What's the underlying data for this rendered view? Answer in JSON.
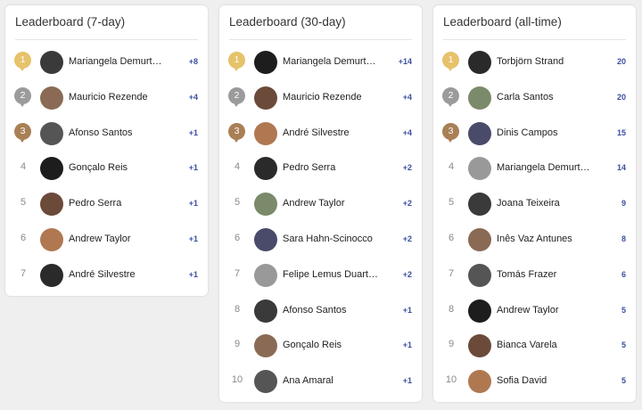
{
  "panels": [
    {
      "title": "Leaderboard (7-day)",
      "rows": [
        {
          "rank": 1,
          "name": "Mariangela Demurt…",
          "score": "+8"
        },
        {
          "rank": 2,
          "name": "Mauricio Rezende",
          "score": "+4"
        },
        {
          "rank": 3,
          "name": "Afonso Santos",
          "score": "+1"
        },
        {
          "rank": 4,
          "name": "Gonçalo Reis",
          "score": "+1"
        },
        {
          "rank": 5,
          "name": "Pedro Serra",
          "score": "+1"
        },
        {
          "rank": 6,
          "name": "Andrew Taylor",
          "score": "+1"
        },
        {
          "rank": 7,
          "name": "André Silvestre",
          "score": "+1"
        }
      ]
    },
    {
      "title": "Leaderboard (30-day)",
      "rows": [
        {
          "rank": 1,
          "name": "Mariangela Demurt…",
          "score": "+14"
        },
        {
          "rank": 2,
          "name": "Mauricio Rezende",
          "score": "+4"
        },
        {
          "rank": 3,
          "name": "André Silvestre",
          "score": "+4"
        },
        {
          "rank": 4,
          "name": "Pedro Serra",
          "score": "+2"
        },
        {
          "rank": 5,
          "name": "Andrew Taylor",
          "score": "+2"
        },
        {
          "rank": 6,
          "name": "Sara Hahn-Scinocco",
          "score": "+2"
        },
        {
          "rank": 7,
          "name": "Felipe Lemus Duart…",
          "score": "+2"
        },
        {
          "rank": 8,
          "name": "Afonso Santos",
          "score": "+1"
        },
        {
          "rank": 9,
          "name": "Gonçalo Reis",
          "score": "+1"
        },
        {
          "rank": 10,
          "name": "Ana Amaral",
          "score": "+1"
        }
      ]
    },
    {
      "title": "Leaderboard (all-time)",
      "rows": [
        {
          "rank": 1,
          "name": "Torbjörn Strand",
          "score": "20"
        },
        {
          "rank": 2,
          "name": "Carla Santos",
          "score": "20"
        },
        {
          "rank": 3,
          "name": "Dinis Campos",
          "score": "15"
        },
        {
          "rank": 4,
          "name": "Mariangela Demurt…",
          "score": "14"
        },
        {
          "rank": 5,
          "name": "Joana Teixeira",
          "score": "9"
        },
        {
          "rank": 6,
          "name": "Inês Vaz Antunes",
          "score": "8"
        },
        {
          "rank": 7,
          "name": "Tomás Frazer",
          "score": "6"
        },
        {
          "rank": 8,
          "name": "Andrew Taylor",
          "score": "5"
        },
        {
          "rank": 9,
          "name": "Bianca Varela",
          "score": "5"
        },
        {
          "rank": 10,
          "name": "Sofia David",
          "score": "5"
        }
      ]
    }
  ]
}
